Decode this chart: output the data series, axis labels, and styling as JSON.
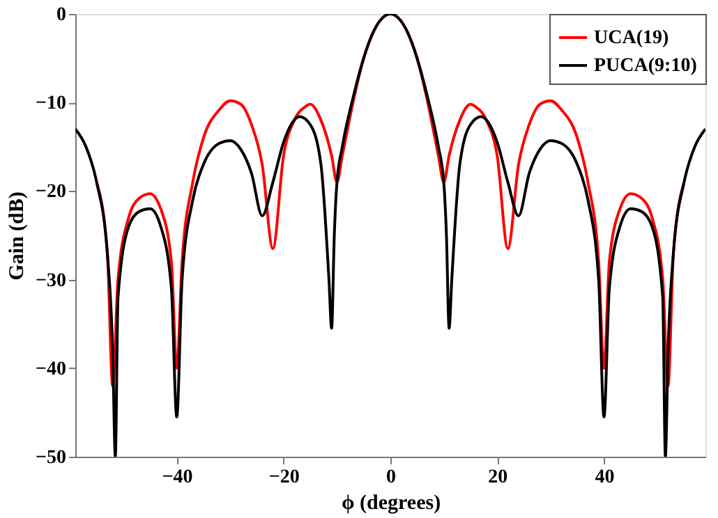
{
  "chart_data": {
    "type": "line",
    "xlabel": "ϕ (degrees)",
    "ylabel": "Gain (dB)",
    "xlim": [
      -59,
      59
    ],
    "ylim": [
      -50,
      0
    ],
    "xticks": [
      -40,
      -20,
      0,
      20,
      40
    ],
    "yticks": [
      -50,
      -40,
      -30,
      -20,
      -10,
      0
    ],
    "grid": false,
    "legend": "top right",
    "line_style": "solid",
    "marker": "none",
    "series": [
      {
        "name": "UCA(19)",
        "color": "#ff0000",
        "x": [
          -55,
          -53,
          -52,
          -51,
          -49,
          -47,
          -45,
          -43,
          -41,
          -40,
          -39,
          -37,
          -35,
          -32,
          -30,
          -28,
          -26,
          -24,
          -22,
          -20,
          -18,
          -16,
          -15,
          -13,
          -11,
          -10,
          -9,
          -7,
          -5,
          -3,
          -1,
          0,
          1,
          3,
          5,
          7,
          9,
          10,
          11,
          13,
          15,
          16,
          18,
          20,
          22,
          24,
          26,
          28,
          30,
          32,
          35,
          37,
          39,
          40,
          41,
          43,
          45,
          47,
          49,
          51,
          52,
          53,
          55
        ],
        "values": [
          -19,
          -27,
          -42,
          -30,
          -23,
          -20.8,
          -20.3,
          -22,
          -28,
          -40,
          -28,
          -19,
          -14,
          -10.8,
          -9.8,
          -10.2,
          -12.5,
          -17,
          -26.5,
          -16,
          -12,
          -10.5,
          -10.2,
          -12,
          -16,
          -19,
          -16,
          -10,
          -5,
          -1.8,
          -0.2,
          0,
          -0.2,
          -1.8,
          -5,
          -10,
          -16,
          -19,
          -16,
          -12,
          -10.2,
          -10.5,
          -12,
          -16,
          -26.5,
          -17,
          -12.5,
          -10.2,
          -9.8,
          -10.8,
          -14,
          -19,
          -28,
          -40,
          -28,
          -22,
          -20.3,
          -20.8,
          -23,
          -30,
          -42,
          -27,
          -19
        ]
      },
      {
        "name": "PUCA(9:10)",
        "color": "#000000",
        "x": [
          -59,
          -57,
          -55,
          -53,
          -52,
          -51.5,
          -51,
          -49,
          -47,
          -45,
          -43,
          -41,
          -40,
          -39,
          -37,
          -35,
          -32,
          -30,
          -28,
          -26,
          -24,
          -22,
          -20,
          -18,
          -17,
          -15,
          -13,
          -11.5,
          -11,
          -10.5,
          -10,
          -9,
          -7,
          -5,
          -3,
          -1,
          0,
          1,
          3,
          5,
          7,
          9,
          10,
          10.5,
          11,
          11.5,
          13,
          15,
          17,
          18,
          20,
          22,
          24,
          26,
          28,
          30,
          32,
          35,
          37,
          39,
          40,
          41,
          43,
          45,
          47,
          49,
          51,
          51.5,
          52,
          53,
          55,
          57,
          59
        ],
        "values": [
          -13,
          -15,
          -19,
          -27,
          -38,
          -50,
          -32,
          -24,
          -22.3,
          -22,
          -24,
          -31,
          -45.5,
          -30,
          -21,
          -17,
          -14.6,
          -14.3,
          -15.3,
          -18,
          -22.8,
          -19,
          -14.5,
          -12,
          -11.6,
          -12.5,
          -17,
          -30,
          -35.5,
          -25,
          -19,
          -15,
          -9.5,
          -5,
          -1.8,
          -0.2,
          0,
          -0.2,
          -1.8,
          -5,
          -9.5,
          -15,
          -19,
          -25,
          -35.5,
          -30,
          -17,
          -12.5,
          -11.6,
          -12,
          -14.5,
          -19,
          -22.8,
          -18,
          -15.3,
          -14.3,
          -14.6,
          -17,
          -21,
          -30,
          -45.5,
          -31,
          -24,
          -22,
          -22.3,
          -24,
          -32,
          -50,
          -38,
          -27,
          -19,
          -15,
          -13
        ]
      }
    ]
  }
}
